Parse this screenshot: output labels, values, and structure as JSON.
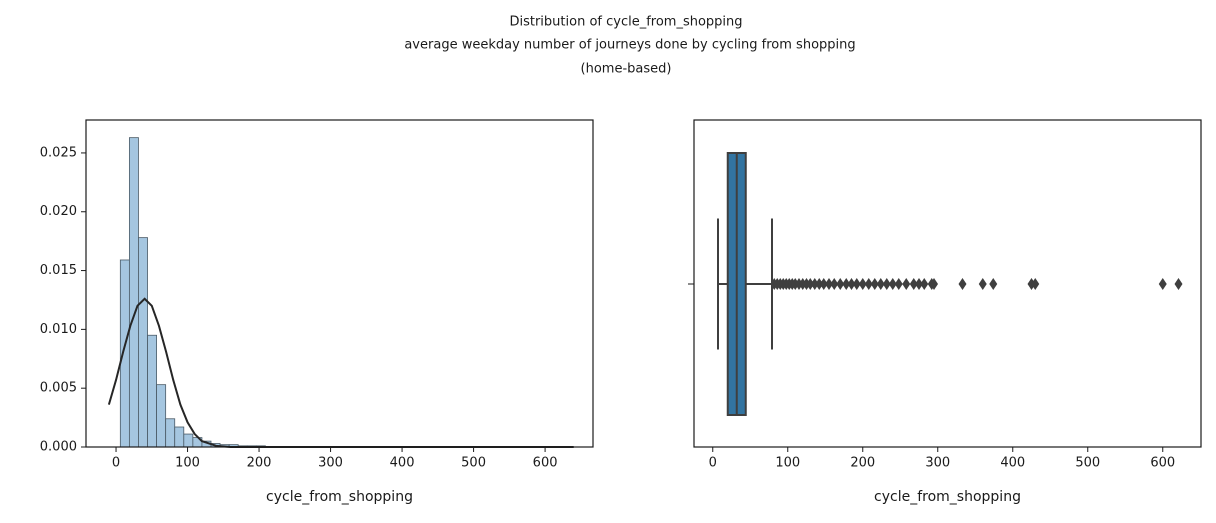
{
  "title": [
    "Distribution of cycle_from_shopping",
    "average weekday number of journeys done by cycling from shopping",
    "(home-based)"
  ],
  "chart_data": [
    {
      "type": "histogram",
      "xlabel": "cycle_from_shopping",
      "color": "#a5c6e0",
      "edgecolor": "#4a5a66",
      "bins": [
        6,
        18.68,
        31.36,
        44.04,
        56.72,
        69.4,
        82.08,
        94.76,
        107.44,
        120.12,
        132.8,
        145.48,
        158.16,
        170.84,
        183.52,
        196.2,
        208.88,
        221.56,
        234.24,
        246.92,
        259.6,
        272.28,
        284.96,
        297.64,
        310.32,
        323,
        335.68,
        348.36,
        361.04,
        373.72,
        386.4,
        399.08,
        411.76,
        424.44,
        437.12,
        449.8,
        462.48,
        475.16,
        487.84,
        500.52,
        513.2,
        525.88,
        538.56,
        551.24,
        563.92,
        576.6,
        589.28,
        601.96,
        614.64,
        627.32,
        640
      ],
      "values": [
        0.0159,
        0.0263,
        0.0178,
        0.0095,
        0.0053,
        0.0024,
        0.0017,
        0.0011,
        0.0008,
        0.0005,
        0.0003,
        0.0002,
        0.0002,
        0.0001,
        0.0001,
        0.0001,
        5e-05,
        3e-05,
        2e-05,
        2e-05,
        2e-05,
        2e-05,
        2e-05,
        1e-05,
        1e-05,
        1e-05,
        1e-05,
        1e-05,
        1e-05,
        1e-05,
        0,
        0,
        0,
        1e-05,
        1e-05,
        0,
        0,
        0,
        0,
        0,
        0,
        0,
        0,
        0,
        0,
        0,
        0,
        1e-05,
        1e-05,
        0
      ],
      "curve": {
        "color": "#262626",
        "x": [
          -10,
          0,
          10,
          20,
          30,
          40,
          50,
          60,
          70,
          80,
          90,
          100,
          110,
          120,
          140,
          160,
          200,
          300,
          640
        ],
        "values": [
          0.0036,
          0.0057,
          0.0081,
          0.0103,
          0.012,
          0.0126,
          0.012,
          0.0103,
          0.0081,
          0.0057,
          0.0036,
          0.0021,
          0.0011,
          0.0005,
          0.0001,
          0,
          0,
          0,
          0
        ]
      },
      "xlim": [
        -42,
        667
      ],
      "ylim": [
        0,
        0.0278
      ],
      "xticks": [
        0,
        100,
        200,
        300,
        400,
        500,
        600
      ],
      "yticks": [
        {
          "value": 0,
          "label": "0.000"
        },
        {
          "value": 0.005,
          "label": "0.005"
        },
        {
          "value": 0.01,
          "label": "0.010"
        },
        {
          "value": 0.015,
          "label": "0.015"
        },
        {
          "value": 0.02,
          "label": "0.020"
        },
        {
          "value": 0.025,
          "label": "0.025"
        }
      ]
    },
    {
      "type": "box",
      "xlabel": "cycle_from_shopping",
      "color": "#3274a1",
      "edgecolor": "#3f3f3f",
      "min": 7,
      "q1": 20,
      "median": 32,
      "q3": 44,
      "max": 79,
      "outliers": [
        82,
        86,
        90,
        94,
        98,
        102,
        106,
        110,
        115,
        120,
        125,
        130,
        136,
        142,
        148,
        155,
        162,
        170,
        178,
        185,
        192,
        200,
        208,
        216,
        224,
        232,
        240,
        248,
        258,
        268,
        275,
        282,
        292,
        295,
        333,
        360,
        374,
        425,
        430,
        600,
        621
      ],
      "xlim": [
        -25,
        651
      ],
      "xticks": [
        0,
        100,
        200,
        300,
        400,
        500,
        600
      ]
    }
  ]
}
